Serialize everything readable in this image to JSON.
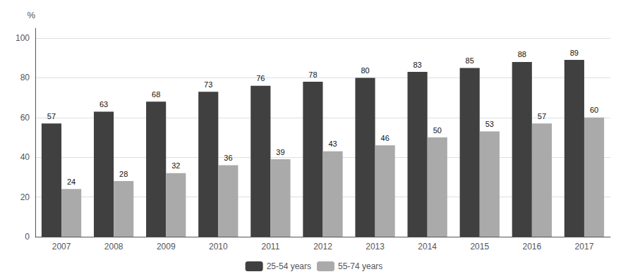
{
  "chart_data": {
    "type": "bar",
    "categories": [
      "2007",
      "2008",
      "2009",
      "2010",
      "2011",
      "2012",
      "2013",
      "2014",
      "2015",
      "2016",
      "2017"
    ],
    "series": [
      {
        "name": "25-54 years",
        "color": "#404040",
        "values": [
          57,
          63,
          68,
          73,
          76,
          78,
          80,
          83,
          85,
          88,
          89
        ]
      },
      {
        "name": "55-74 years",
        "color": "#aaaaaa",
        "values": [
          24,
          28,
          32,
          36,
          39,
          43,
          46,
          50,
          53,
          57,
          60
        ]
      }
    ],
    "ylabel": "%",
    "ylim": [
      0,
      105
    ],
    "yticks": [
      0,
      20,
      40,
      60,
      80,
      100
    ],
    "grid": true,
    "legend": "bottom",
    "data_labels": true
  }
}
